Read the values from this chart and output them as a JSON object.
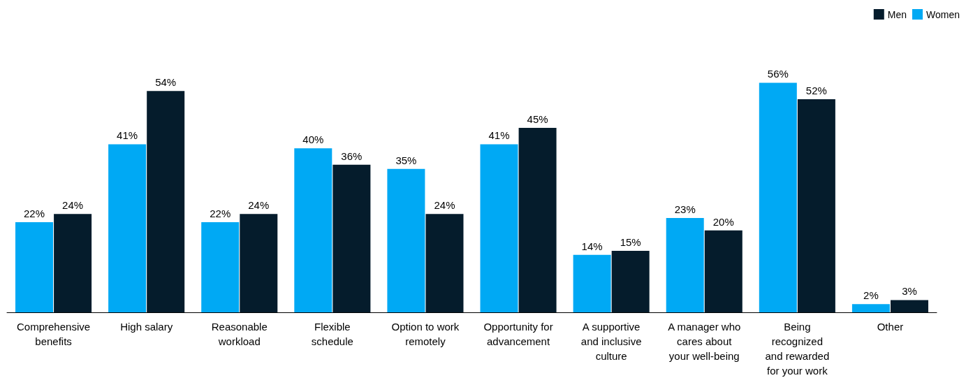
{
  "chart_data": {
    "type": "bar",
    "categories": [
      "Comprehensive\nbenefits",
      "High salary",
      "Reasonable\nworkload",
      "Flexible\nschedule",
      "Option to work\nremotely",
      "Opportunity for\nadvancement",
      "A supportive\nand inclusive\nculture",
      "A manager who\ncares about\nyour well-being",
      "Being\nrecognized\nand rewarded\nfor your work",
      "Other"
    ],
    "series": [
      {
        "name": "Women",
        "color": "#00a9f4",
        "values": [
          22,
          41,
          22,
          40,
          35,
          41,
          14,
          23,
          56,
          2
        ],
        "value_labels": [
          "22%",
          "41%",
          "22%",
          "40%",
          "35%",
          "41%",
          "14%",
          "23%",
          "56%",
          "2%"
        ]
      },
      {
        "name": "Men",
        "color": "#051c2c",
        "values": [
          24,
          54,
          24,
          36,
          24,
          45,
          15,
          20,
          52,
          3
        ],
        "value_labels": [
          "24%",
          "54%",
          "24%",
          "36%",
          "24%",
          "45%",
          "15%",
          "20%",
          "52%",
          "3%"
        ]
      }
    ],
    "legend": "top right",
    "grid": false
  }
}
